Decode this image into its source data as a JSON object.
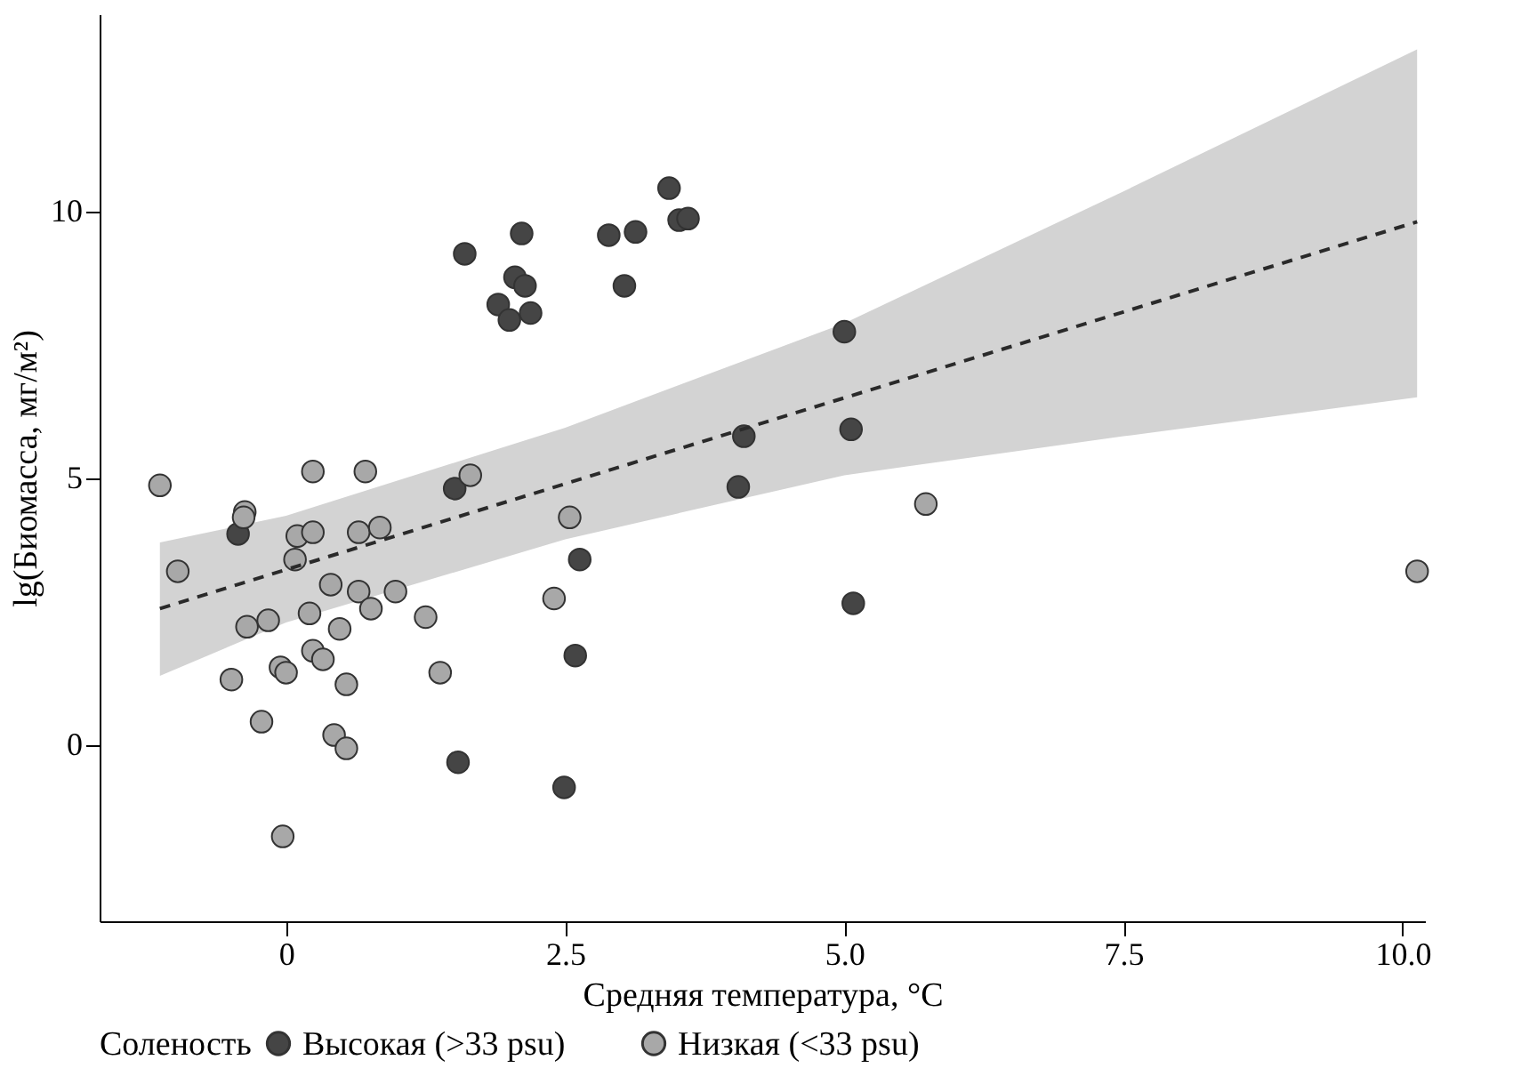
{
  "chart_data": {
    "type": "scatter",
    "xlabel": "Средняя температура, °C",
    "ylabel": "lg(Биомасса, мг/м²)",
    "legend_title": "Соленость",
    "legend": "bottom",
    "grid": false,
    "xlim": [
      -1.67,
      10.2
    ],
    "ylim": [
      -3.3,
      13.7
    ],
    "xticks": [
      0,
      2.5,
      {
        "value": 5,
        "label": "5.0"
      },
      {
        "value": 7.5,
        "label": "7.5"
      },
      {
        "value": 10,
        "label": "10.0"
      }
    ],
    "yticks": [
      0,
      5,
      10
    ],
    "series": [
      {
        "name": "Высокая (>33 psu)",
        "color": "#454545",
        "marker": "circle",
        "x": [
          -0.43,
          1.51,
          2.63,
          2.59,
          1.54,
          2.49,
          3.43,
          3.52,
          3.6,
          3.13,
          2.89,
          2.11,
          1.6,
          2.05,
          2.14,
          1.9,
          2.0,
          2.19,
          3.03,
          5.0,
          4.1,
          5.06,
          4.05,
          5.08
        ],
        "values": [
          3.96,
          4.81,
          3.48,
          1.68,
          -0.32,
          -0.79,
          10.44,
          9.84,
          9.87,
          9.62,
          9.56,
          9.59,
          9.21,
          8.77,
          8.61,
          8.26,
          7.97,
          8.1,
          8.61,
          7.75,
          5.79,
          5.92,
          4.84,
          2.66
        ]
      },
      {
        "name": "Низкая (<33 psu)",
        "color": "#a8a8a8",
        "marker": "circle",
        "x": [
          -1.13,
          -0.97,
          -0.37,
          -0.38,
          0.24,
          0.71,
          1.65,
          0.1,
          0.24,
          0.65,
          0.84,
          0.08,
          0.4,
          0.65,
          0.98,
          0.76,
          0.21,
          1.25,
          -0.35,
          -0.16,
          0.48,
          0.24,
          0.33,
          -0.05,
          0.0,
          -0.49,
          0.54,
          1.38,
          -0.22,
          0.43,
          0.54,
          2.54,
          2.4,
          5.73,
          10.13,
          -0.03
        ],
        "values": [
          4.87,
          3.26,
          4.37,
          4.27,
          5.13,
          5.13,
          5.06,
          3.92,
          3.99,
          3.99,
          4.08,
          3.48,
          3.01,
          2.88,
          2.88,
          2.56,
          2.47,
          2.4,
          2.22,
          2.34,
          2.18,
          1.77,
          1.61,
          1.46,
          1.36,
          1.23,
          1.14,
          1.36,
          0.44,
          0.19,
          -0.06,
          4.27,
          2.75,
          4.52,
          3.26,
          -1.71
        ]
      },
      {
        "type": "line",
        "marker": "none",
        "line_style": "dashed",
        "color": "#2a2a2a",
        "x": [
          -1.13,
          0,
          2.5,
          5,
          7.5,
          10.13
        ],
        "values": [
          2.56,
          3.29,
          4.9,
          6.51,
          8.12,
          9.81
        ],
        "lower": [
          1.3,
          2.3,
          3.86,
          5.06,
          5.79,
          6.52
        ],
        "upper": [
          3.8,
          4.3,
          5.95,
          7.91,
          10.38,
          13.04
        ]
      }
    ]
  }
}
